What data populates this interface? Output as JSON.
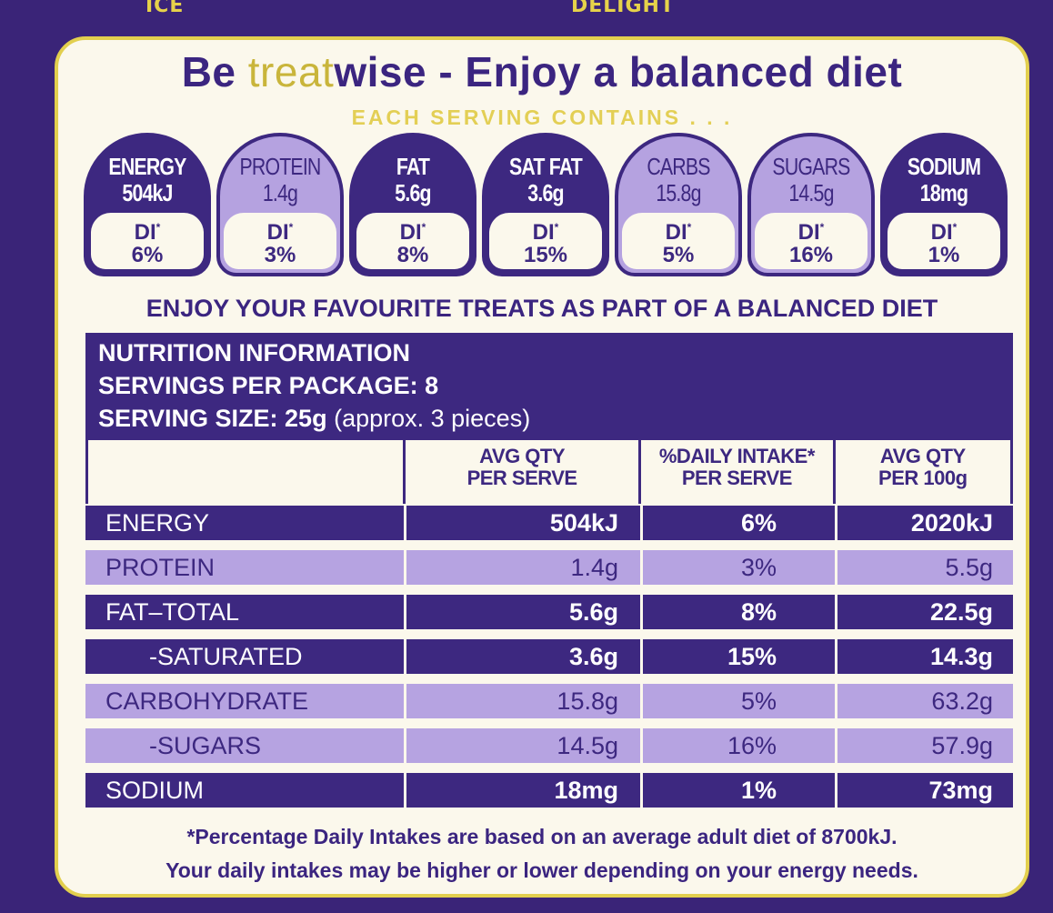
{
  "top_fragments": [
    "ICE",
    "DELIGHT"
  ],
  "headline": {
    "part1": "Be ",
    "part2": "treat",
    "part3": "wise - Enjoy a balanced diet"
  },
  "subhead": "EACH SERVING CONTAINS . . .",
  "gda": [
    {
      "name": "ENERGY",
      "value": "504kJ",
      "di": "DI",
      "pct": "6%"
    },
    {
      "name": "PROTEIN",
      "value": "1.4g",
      "di": "DI",
      "pct": "3%"
    },
    {
      "name": "FAT",
      "value": "5.6g",
      "di": "DI",
      "pct": "8%"
    },
    {
      "name": "SAT FAT",
      "value": "3.6g",
      "di": "DI",
      "pct": "15%"
    },
    {
      "name": "CARBS",
      "value": "15.8g",
      "di": "DI",
      "pct": "5%"
    },
    {
      "name": "SUGARS",
      "value": "14.5g",
      "di": "DI",
      "pct": "16%"
    },
    {
      "name": "SODIUM",
      "value": "18mg",
      "di": "DI",
      "pct": "1%"
    }
  ],
  "enjoy": "ENJOY YOUR FAVOURITE TREATS AS PART OF A BALANCED DIET",
  "nutrition": {
    "title": "NUTRITION INFORMATION",
    "servings": "SERVINGS PER PACKAGE: 8",
    "serving_size_label": "SERVING SIZE: 25g",
    "serving_size_note": " (approx. 3 pieces)",
    "headers": [
      "AVG QTY\nPER SERVE",
      "%DAILY INTAKE*\nPER SERVE",
      "AVG QTY\nPER 100g"
    ],
    "rows": [
      {
        "name": "ENERGY",
        "serve": "504kJ",
        "di": "6%",
        "per100": "2020kJ"
      },
      {
        "name": "PROTEIN",
        "serve": "1.4g",
        "di": "3%",
        "per100": "5.5g"
      },
      {
        "name": "FAT–TOTAL",
        "serve": "5.6g",
        "di": "8%",
        "per100": "22.5g"
      },
      {
        "name": "-SATURATED",
        "serve": "3.6g",
        "di": "15%",
        "per100": "14.3g"
      },
      {
        "name": "CARBOHYDRATE",
        "serve": "15.8g",
        "di": "5%",
        "per100": "63.2g"
      },
      {
        "name": "-SUGARS",
        "serve": "14.5g",
        "di": "16%",
        "per100": "57.9g"
      },
      {
        "name": "SODIUM",
        "serve": "18mg",
        "di": "1%",
        "per100": "73mg"
      }
    ]
  },
  "footnote": {
    "line1": "*Percentage Daily Intakes are based on an average adult diet of 8700kJ.",
    "line2": "Your daily intakes may be higher or lower depending on your energy needs."
  },
  "colors": {
    "purple": "#3d2880",
    "lavender": "#b6a3e1",
    "gold": "#e2cf4e",
    "cream": "#fbf8ec"
  }
}
